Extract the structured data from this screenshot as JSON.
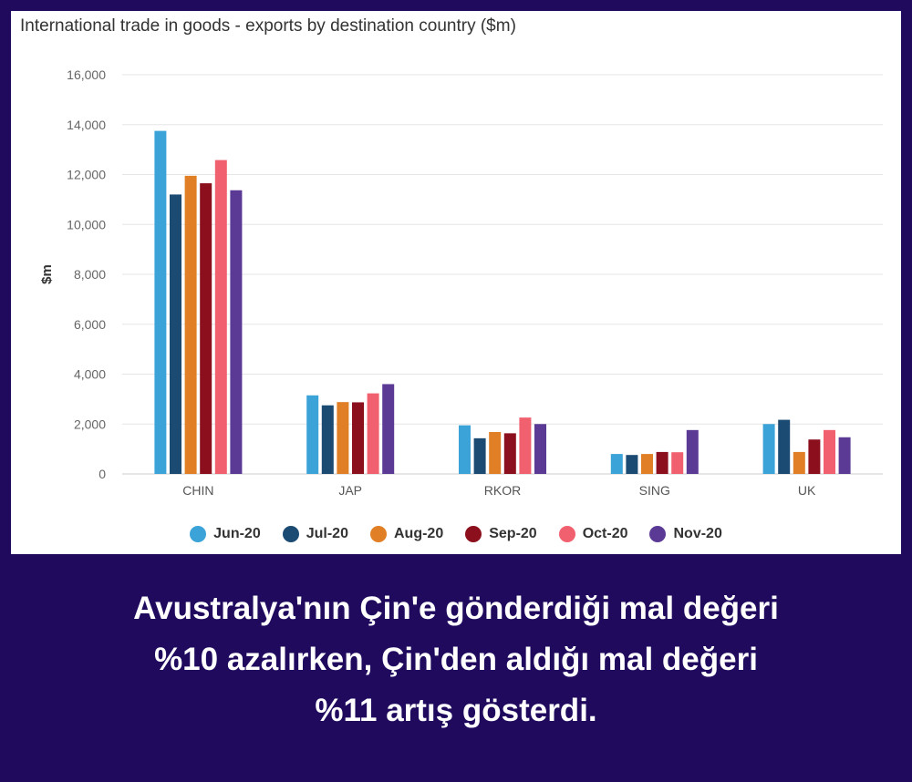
{
  "chart_data": {
    "type": "bar",
    "title": "International trade in goods - exports by destination country ($m)",
    "xlabel": "",
    "ylabel": "$m",
    "ylim": [
      0,
      16000
    ],
    "yticks": [
      0,
      2000,
      4000,
      6000,
      8000,
      10000,
      12000,
      14000,
      16000
    ],
    "ytick_labels": [
      "0",
      "2,000",
      "4,000",
      "6,000",
      "8,000",
      "10,000",
      "12,000",
      "14,000",
      "16,000"
    ],
    "categories": [
      "CHIN",
      "JAP",
      "RKOR",
      "SING",
      "UK"
    ],
    "legend_position": "bottom",
    "series": [
      {
        "name": "Jun-20",
        "color": "#3ba3d8",
        "values": [
          13750,
          3150,
          1950,
          800,
          2000
        ]
      },
      {
        "name": "Jul-20",
        "color": "#1b4a73",
        "values": [
          11200,
          2750,
          1430,
          760,
          2170
        ]
      },
      {
        "name": "Aug-20",
        "color": "#e07f25",
        "values": [
          11950,
          2880,
          1680,
          800,
          880
        ]
      },
      {
        "name": "Sep-20",
        "color": "#8b0f1c",
        "values": [
          11650,
          2870,
          1630,
          880,
          1380
        ]
      },
      {
        "name": "Oct-20",
        "color": "#f0606e",
        "values": [
          12580,
          3230,
          2260,
          870,
          1760
        ]
      },
      {
        "name": "Nov-20",
        "color": "#5b3a96",
        "values": [
          11370,
          3600,
          2000,
          1760,
          1470
        ]
      }
    ]
  },
  "caption": {
    "lines": [
      "Avustralya'nın Çin'e gönderdiği mal değeri",
      "%10 azalırken, Çin'den aldığı mal değeri",
      "%11 artış gösterdi."
    ]
  },
  "colors": {
    "background": "#1f0a5e",
    "panel": "#ffffff",
    "gridline": "#e6e6e6"
  }
}
